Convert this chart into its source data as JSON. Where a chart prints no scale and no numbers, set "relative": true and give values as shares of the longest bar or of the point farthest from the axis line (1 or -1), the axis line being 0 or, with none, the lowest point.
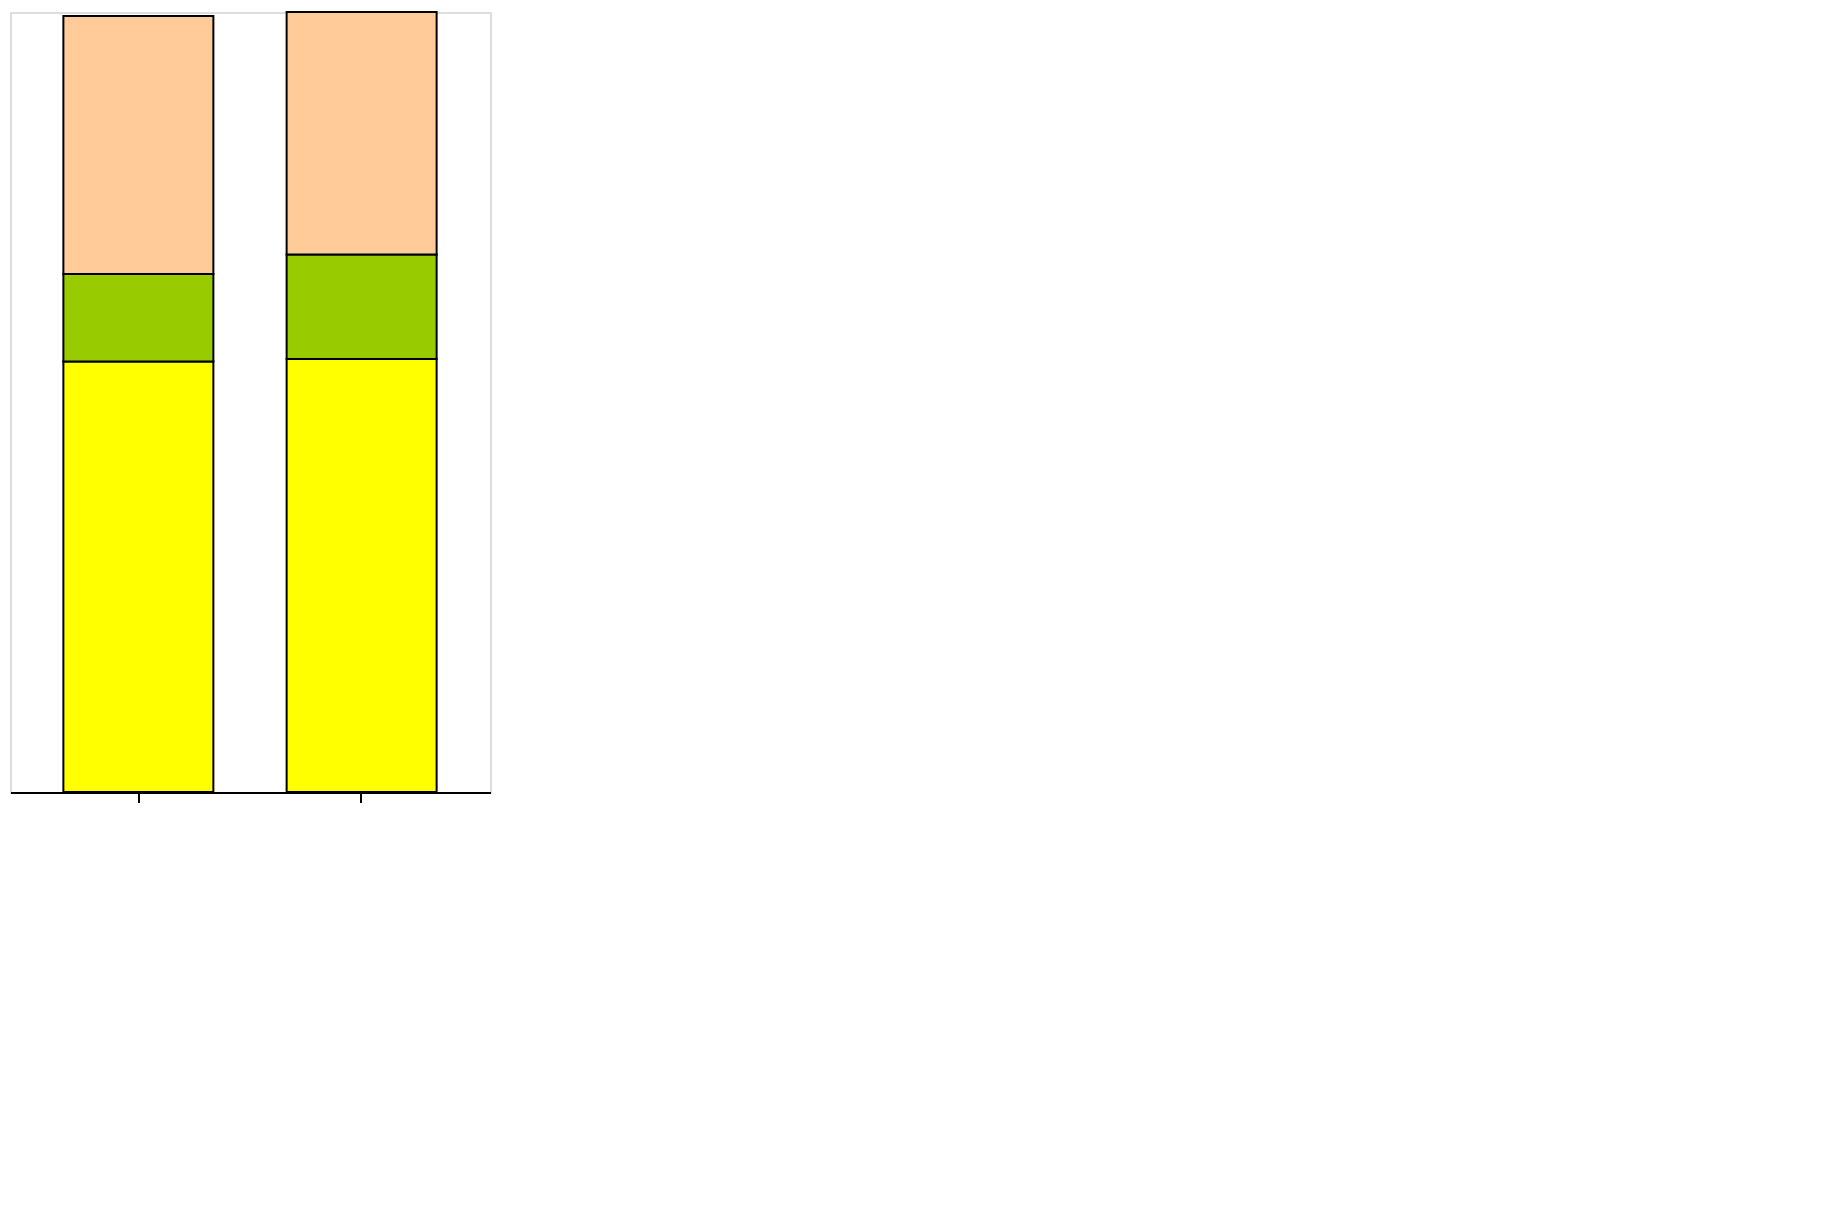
{
  "chart_data": {
    "type": "bar",
    "stacked": true,
    "relative": true,
    "categories": [
      null,
      null
    ],
    "series": [
      {
        "color": "#ffff00",
        "values": [
          0.552,
          0.555
        ]
      },
      {
        "color": "#99cc00",
        "values": [
          0.112,
          0.134
        ]
      },
      {
        "color": "#ffcc99",
        "values": [
          0.331,
          0.311
        ]
      }
    ]
  }
}
